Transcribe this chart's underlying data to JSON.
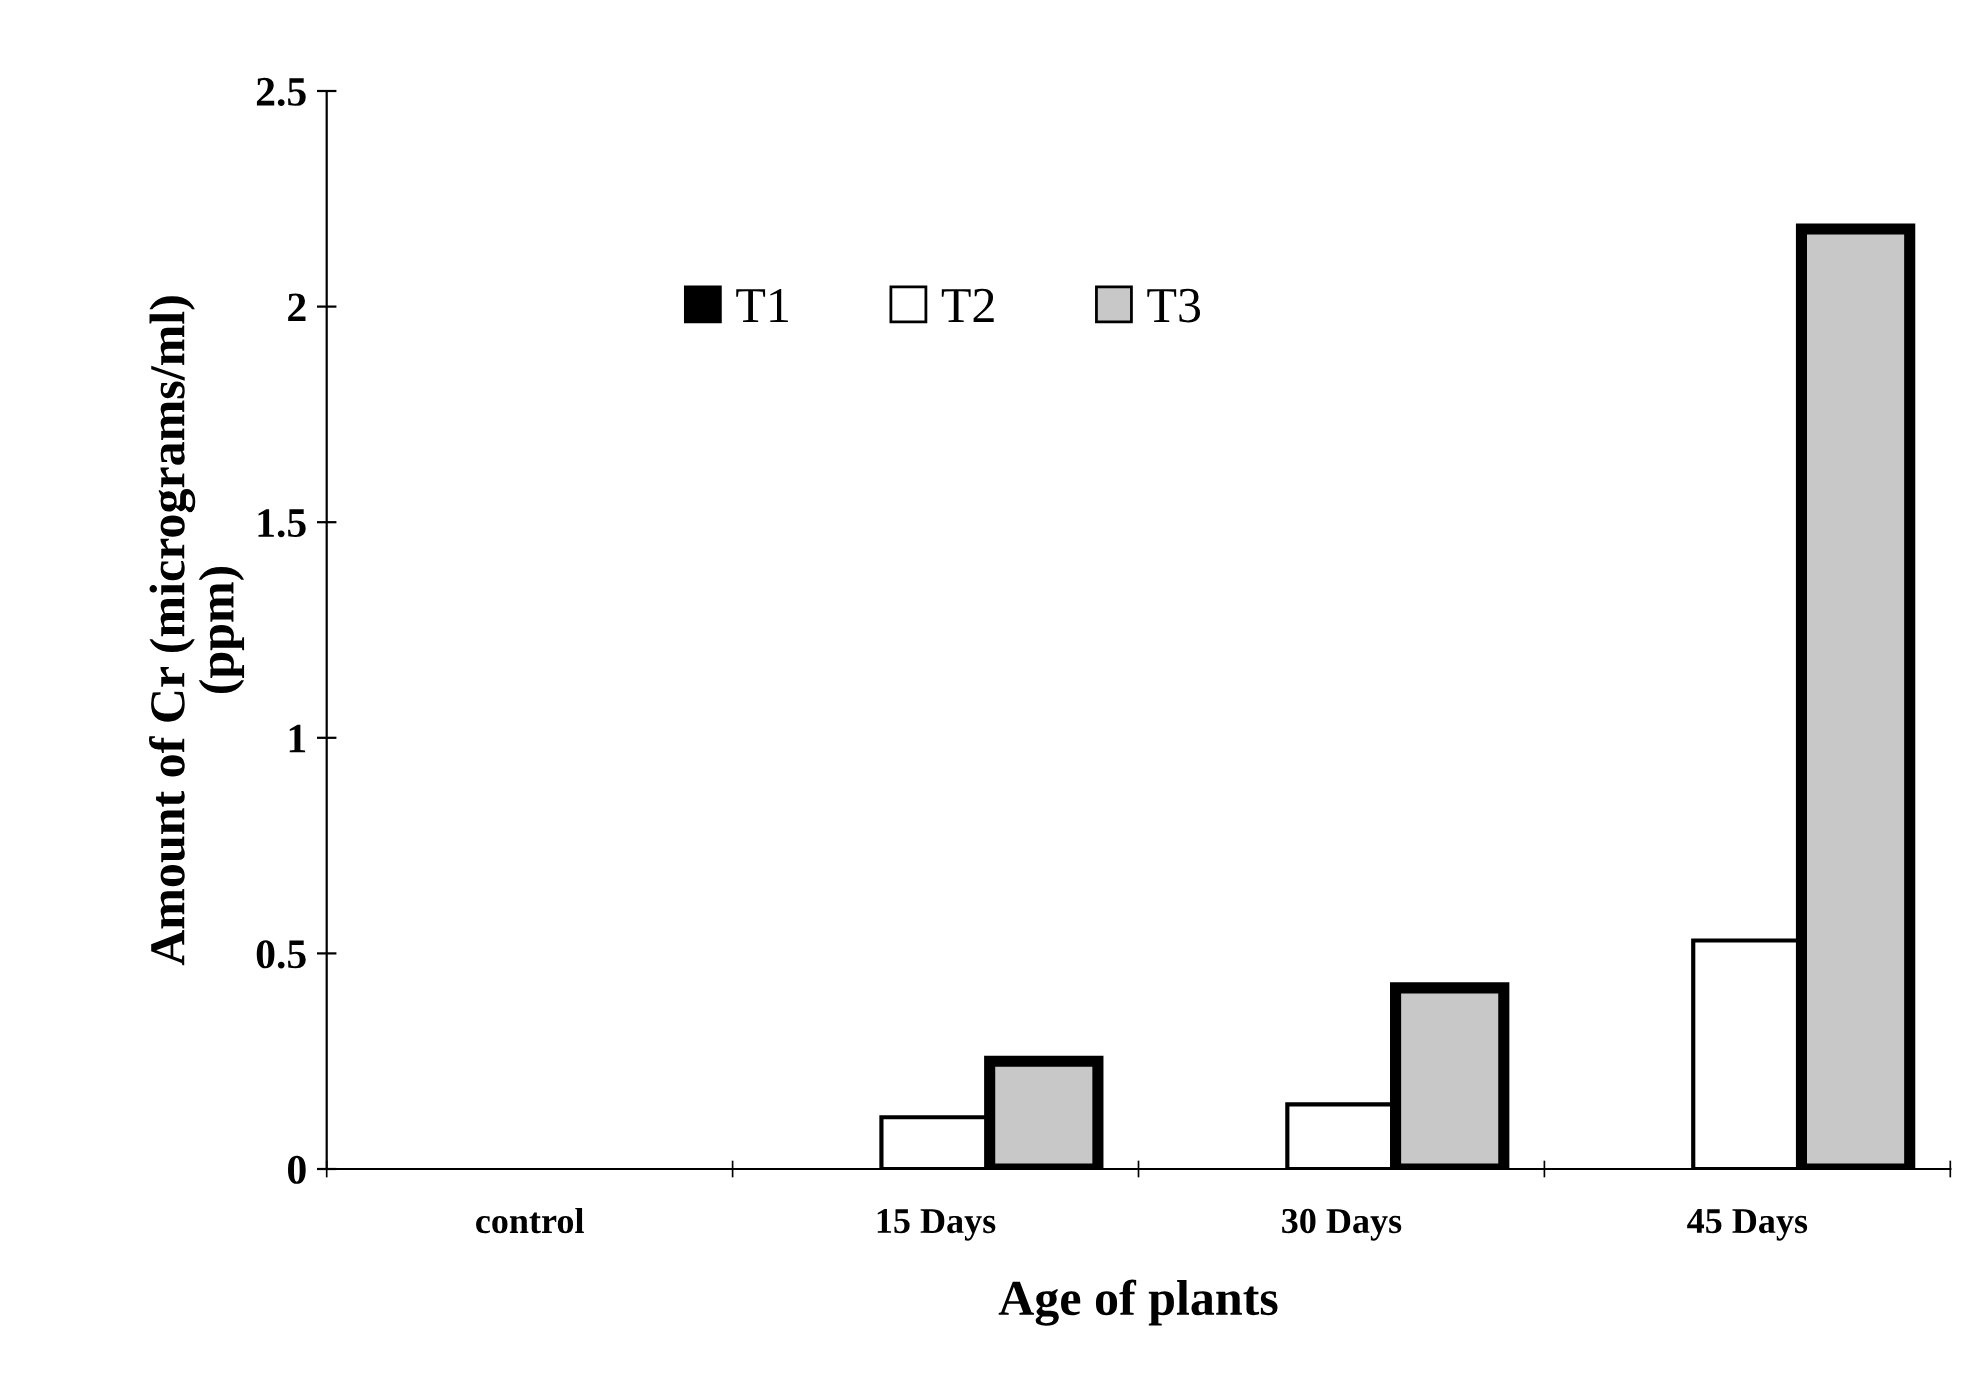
{
  "chart_data": {
    "type": "bar",
    "xlabel": "Age of plants",
    "ylabel": "Amount of Cr (micrograms/ml)\n(ppm)",
    "categories": [
      "control",
      "15 Days",
      "30 Days",
      "45 Days"
    ],
    "series": [
      {
        "name": "T1",
        "color": "#000000",
        "values": [
          0,
          0,
          0,
          0
        ]
      },
      {
        "name": "T2",
        "color": "#ffffff",
        "values": [
          0,
          0.12,
          0.15,
          0.53
        ]
      },
      {
        "name": "T3",
        "color": "#c8c8c8",
        "values": [
          0,
          0.25,
          0.42,
          2.18
        ]
      }
    ],
    "ylim": [
      0,
      2.5
    ],
    "yticks": [
      0,
      0.5,
      1,
      1.5,
      2,
      2.5
    ],
    "grid": false,
    "legend": "top"
  }
}
